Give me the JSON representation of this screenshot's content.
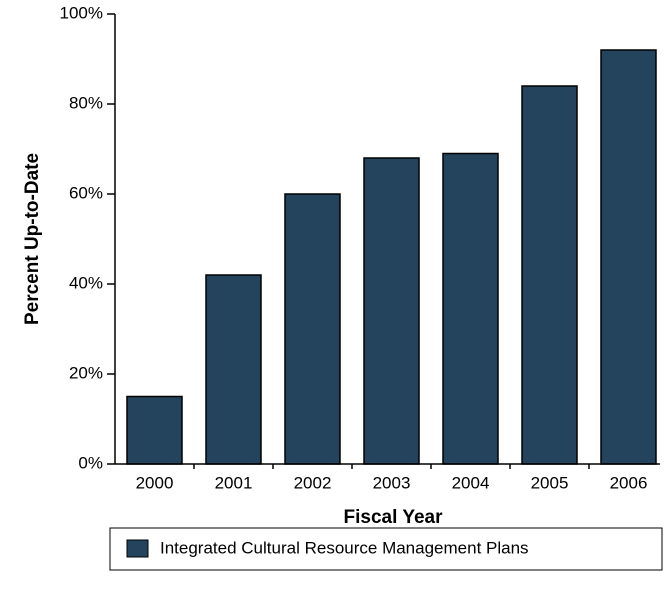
{
  "chart_data": {
    "type": "bar",
    "categories": [
      "2000",
      "2001",
      "2002",
      "2003",
      "2004",
      "2005",
      "2006"
    ],
    "series": [
      {
        "name": "Integrated Cultural Resource Management Plans",
        "color": "#24435c",
        "values": [
          15,
          42,
          60,
          68,
          69,
          84,
          92
        ]
      }
    ],
    "ylim": [
      0,
      100
    ],
    "yticks": [
      {
        "value": 0,
        "label": "0%"
      },
      {
        "value": 20,
        "label": "20%"
      },
      {
        "value": 40,
        "label": "40%"
      },
      {
        "value": 60,
        "label": "60%"
      },
      {
        "value": 80,
        "label": "80%"
      },
      {
        "value": 100,
        "label": "100%"
      }
    ],
    "xlabel": "Fiscal Year",
    "ylabel": "Percent Up-to-Date",
    "legend": "bottom"
  }
}
